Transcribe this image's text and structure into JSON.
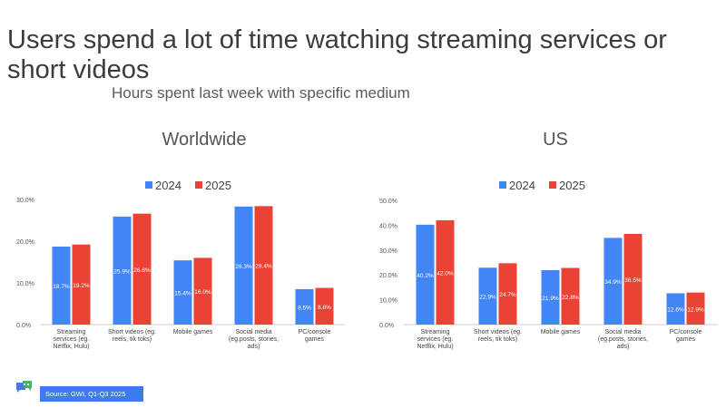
{
  "slide": {
    "title": "Users spend a lot of time watching streaming services or short videos",
    "subtitle": "Hours spent last week with specific medium",
    "source": "Source: GWI, Q1-Q3 2025",
    "logo_icon": "chat-bubbles-logo-icon"
  },
  "colors": {
    "series_2024": "#4285f4",
    "series_2025": "#ea4335",
    "axis": "#cccccc",
    "text": "#444444"
  },
  "chart_data": [
    {
      "type": "bar",
      "title": "Worldwide",
      "categories": [
        "Streaming services (eg. Netflix, Hulu)",
        "Short videos (eg. reels, tik toks)",
        "Mobile games",
        "Social media (eg.posts, stories, ads)",
        "PC/console games"
      ],
      "category_lines": [
        [
          "Streaming",
          "services (eg.",
          "Netflix, Hulu)"
        ],
        [
          "Short videos (eg.",
          "reels, tik toks)"
        ],
        [
          "Mobile games"
        ],
        [
          "Social media",
          "(eg.posts, stories,",
          "ads)"
        ],
        [
          "PC/console",
          "games"
        ]
      ],
      "series": [
        {
          "name": "2024",
          "values": [
            18.7,
            25.9,
            15.4,
            28.3,
            8.5
          ],
          "labels": [
            "18.7%",
            "25.9%",
            "15.4%",
            "28.3%",
            "8.5%"
          ]
        },
        {
          "name": "2025",
          "values": [
            19.2,
            26.6,
            16.0,
            28.4,
            8.8
          ],
          "labels": [
            "19.2%",
            "26.6%",
            "16.0%",
            "28.4%",
            "8.8%"
          ]
        }
      ],
      "ylim": [
        0,
        30
      ],
      "yticks": [
        0,
        10,
        20,
        30
      ],
      "ytick_labels": [
        "0.0%",
        "10.0%",
        "20.0%",
        "30.0%"
      ],
      "legend_position": "top-center",
      "grid": false
    },
    {
      "type": "bar",
      "title": "US",
      "categories": [
        "Streaming services (eg. Netflix, Hulu)",
        "Short videos (eg. reels, tik toks)",
        "Mobile games",
        "Social media (eg.posts, stories, ads)",
        "PC/console games"
      ],
      "category_lines": [
        [
          "Streaming",
          "services (eg.",
          "Netflix, Hulu)"
        ],
        [
          "Short videos (eg.",
          "reels, tik toks)"
        ],
        [
          "Mobile games"
        ],
        [
          "Social media",
          "(eg.posts, stories,",
          "ads)"
        ],
        [
          "PC/console",
          "games"
        ]
      ],
      "series": [
        {
          "name": "2024",
          "values": [
            40.2,
            22.9,
            21.9,
            34.9,
            12.6
          ],
          "labels": [
            "40.2%",
            "22.9%",
            "21.9%",
            "34.9%",
            "12.6%"
          ]
        },
        {
          "name": "2025",
          "values": [
            42.0,
            24.7,
            22.8,
            36.5,
            12.9
          ],
          "labels": [
            "42.0%",
            "24.7%",
            "22.8%",
            "36.5%",
            "12.9%"
          ]
        }
      ],
      "ylim": [
        0,
        50
      ],
      "yticks": [
        0,
        10,
        20,
        30,
        40,
        50
      ],
      "ytick_labels": [
        "0.0%",
        "10.0%",
        "20.0%",
        "30.0%",
        "40.0%",
        "50.0%"
      ],
      "legend_position": "top-center",
      "grid": false
    }
  ]
}
